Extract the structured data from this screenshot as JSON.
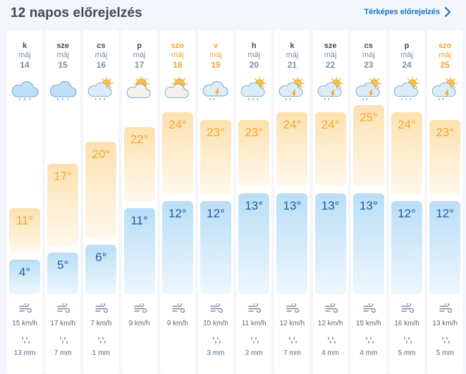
{
  "header": {
    "title": "12 napos előrejelzés",
    "map_link": "Térképes előrejelzés",
    "link_color": "#1a73c8"
  },
  "colors": {
    "max_temp": "#f0a82a",
    "min_temp": "#1a5d9e",
    "weekend": "#f5a623"
  },
  "days": [
    {
      "name": "k",
      "month": "máj",
      "day": "14",
      "icon": "rain-cloud-icon",
      "max": "11°",
      "min": "4°",
      "max_c": 11,
      "min_c": 4,
      "wind": "15 km/h",
      "rain": "13 mm",
      "weekend": false
    },
    {
      "name": "sze",
      "month": "máj",
      "day": "15",
      "icon": "rain-cloud-icon",
      "max": "17°",
      "min": "5°",
      "max_c": 17,
      "min_c": 5,
      "wind": "17 km/h",
      "rain": "7 mm",
      "weekend": false
    },
    {
      "name": "cs",
      "month": "máj",
      "day": "16",
      "icon": "sun-rain-cloud-icon",
      "max": "20°",
      "min": "6°",
      "max_c": 20,
      "min_c": 6,
      "wind": "7 km/h",
      "rain": "1 mm",
      "weekend": false
    },
    {
      "name": "p",
      "month": "máj",
      "day": "17",
      "icon": "partly-cloudy-icon",
      "max": "22°",
      "min": "11°",
      "max_c": 22,
      "min_c": 11,
      "wind": "9 km/h",
      "rain": "",
      "weekend": false
    },
    {
      "name": "szo",
      "month": "máj",
      "day": "18",
      "icon": "partly-cloudy-icon",
      "max": "24°",
      "min": "12°",
      "max_c": 24,
      "min_c": 12,
      "wind": "9 km/h",
      "rain": "",
      "weekend": true
    },
    {
      "name": "v",
      "month": "máj",
      "day": "19",
      "icon": "thunderstorm-icon",
      "max": "23°",
      "min": "12°",
      "max_c": 23,
      "min_c": 12,
      "wind": "10 km/h",
      "rain": "3 mm",
      "weekend": true
    },
    {
      "name": "h",
      "month": "máj",
      "day": "20",
      "icon": "sun-rain-cloud-icon",
      "max": "23°",
      "min": "13°",
      "max_c": 23,
      "min_c": 13,
      "wind": "11 km/h",
      "rain": "2 mm",
      "weekend": false
    },
    {
      "name": "k",
      "month": "máj",
      "day": "21",
      "icon": "sun-thunderstorm-icon",
      "max": "24°",
      "min": "13°",
      "max_c": 24,
      "min_c": 13,
      "wind": "12 km/h",
      "rain": "7 mm",
      "weekend": false
    },
    {
      "name": "sze",
      "month": "máj",
      "day": "22",
      "icon": "sun-thunderstorm-icon",
      "max": "24°",
      "min": "13°",
      "max_c": 24,
      "min_c": 13,
      "wind": "12 km/h",
      "rain": "4 mm",
      "weekend": false
    },
    {
      "name": "cs",
      "month": "máj",
      "day": "23",
      "icon": "sun-thunderstorm-icon",
      "max": "25°",
      "min": "13°",
      "max_c": 25,
      "min_c": 13,
      "wind": "15 km/h",
      "rain": "4 mm",
      "weekend": false
    },
    {
      "name": "p",
      "month": "máj",
      "day": "24",
      "icon": "sun-rain-cloud-icon",
      "max": "24°",
      "min": "12°",
      "max_c": 24,
      "min_c": 12,
      "wind": "16 km/h",
      "rain": "5 mm",
      "weekend": false
    },
    {
      "name": "szo",
      "month": "máj",
      "day": "25",
      "icon": "sun-thunderstorm-icon",
      "max": "23°",
      "min": "12°",
      "max_c": 23,
      "min_c": 12,
      "wind": "13 km/h",
      "rain": "5 mm",
      "weekend": true
    }
  ]
}
